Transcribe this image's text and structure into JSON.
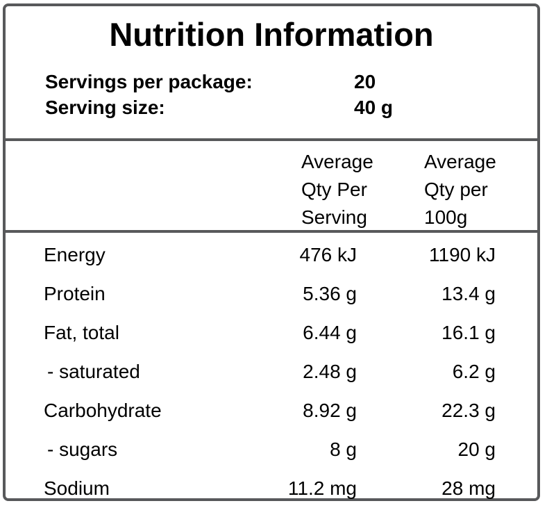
{
  "nutrition_label": {
    "title": "Nutrition Information",
    "servings": [
      {
        "label": "Servings per package:",
        "value": "20"
      },
      {
        "label": "Serving size:",
        "value": "40 g"
      }
    ],
    "column_headers": {
      "per_serving": [
        "Average",
        "Qty Per",
        "Serving"
      ],
      "per_100g": [
        "Average",
        "Qty per",
        "100g"
      ]
    },
    "rows": [
      {
        "nutrient": "Energy",
        "per_serving": "476 kJ",
        "per_100g": "1190 kJ",
        "indent": false
      },
      {
        "nutrient": "Protein",
        "per_serving": "5.36 g",
        "per_100g": "13.4 g",
        "indent": false
      },
      {
        "nutrient": "Fat, total",
        "per_serving": "6.44 g",
        "per_100g": "16.1 g",
        "indent": false
      },
      {
        "nutrient": "- saturated",
        "per_serving": "2.48 g",
        "per_100g": "6.2 g",
        "indent": true
      },
      {
        "nutrient": "Carbohydrate",
        "per_serving": "8.92 g",
        "per_100g": "22.3 g",
        "indent": false
      },
      {
        "nutrient": "- sugars",
        "per_serving": "8 g",
        "per_100g": "20 g",
        "indent": true
      },
      {
        "nutrient": "Sodium",
        "per_serving": "11.2 mg",
        "per_100g": "28 mg",
        "indent": false
      }
    ],
    "colors": {
      "border": "#58595b",
      "text": "#000000",
      "background": "#ffffff"
    }
  }
}
